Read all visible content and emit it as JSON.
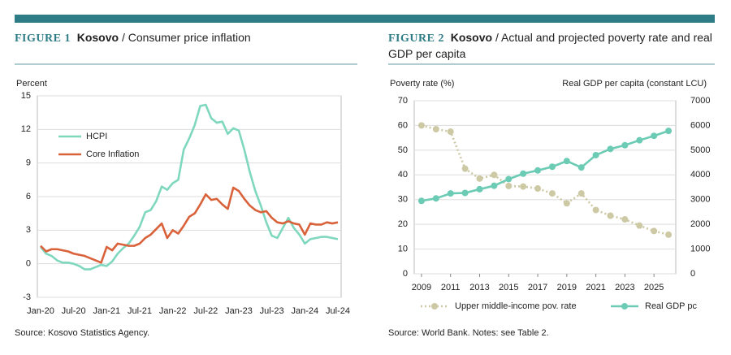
{
  "chart_data": [
    {
      "type": "line",
      "label": "FIGURE 1",
      "country": "Kosovo",
      "title": "/ Consumer price inflation",
      "ylabel": "Percent",
      "source": "Source: Kosovo Statistics Agency.",
      "categories": [
        "Jan-20",
        null,
        null,
        null,
        null,
        null,
        "Jul-20",
        null,
        null,
        null,
        null,
        null,
        "Jan-21",
        null,
        null,
        null,
        null,
        null,
        "Jul-21",
        null,
        null,
        null,
        null,
        null,
        "Jan-22",
        null,
        null,
        null,
        null,
        null,
        "Jul-22",
        null,
        null,
        null,
        null,
        null,
        "Jan-23",
        null,
        null,
        null,
        null,
        null,
        "Jul-23",
        null,
        null,
        null,
        null,
        null,
        "Jan-24",
        null,
        null,
        null,
        null,
        null,
        "Jul-24"
      ],
      "series": [
        {
          "name": "HCPI",
          "color": "#7fd8be",
          "values": [
            1.5,
            0.9,
            0.7,
            0.3,
            0.1,
            0.1,
            0.0,
            -0.2,
            -0.5,
            -0.5,
            -0.3,
            -0.1,
            -0.2,
            0.2,
            0.9,
            1.4,
            1.8,
            2.5,
            3.3,
            4.6,
            4.8,
            5.6,
            6.9,
            6.6,
            7.2,
            7.5,
            10.2,
            11.2,
            12.4,
            14.1,
            14.2,
            13.0,
            12.6,
            12.7,
            11.6,
            12.1,
            11.9,
            10.2,
            8.2,
            6.5,
            5.2,
            3.7,
            2.5,
            2.3,
            3.2,
            4.1,
            3.2,
            2.6,
            1.8,
            2.2,
            2.3,
            2.4,
            2.4,
            2.3,
            2.2
          ]
        },
        {
          "name": "Core Inflation",
          "color": "#d9623b",
          "values": [
            1.6,
            1.1,
            1.3,
            1.3,
            1.2,
            1.1,
            0.9,
            0.8,
            0.7,
            0.5,
            0.3,
            0.1,
            1.5,
            1.2,
            1.8,
            1.7,
            1.6,
            1.6,
            1.8,
            2.3,
            2.6,
            3.1,
            3.6,
            2.3,
            3.0,
            2.7,
            3.4,
            4.2,
            4.5,
            5.3,
            6.2,
            5.7,
            5.8,
            5.3,
            4.9,
            6.8,
            6.5,
            5.8,
            5.2,
            4.8,
            4.6,
            4.7,
            4.1,
            3.7,
            3.6,
            3.8,
            3.6,
            3.5,
            2.6,
            3.6,
            3.5,
            3.5,
            3.7,
            3.6,
            3.7
          ]
        }
      ],
      "ylim": [
        -3,
        15
      ],
      "yticks": [
        -3,
        0,
        3,
        6,
        9,
        12,
        15
      ],
      "grid": true,
      "legend": "upper left"
    },
    {
      "type": "line",
      "label": "FIGURE 2",
      "country": "Kosovo",
      "title": "/ Actual and projected poverty rate and real GDP per capita",
      "ylabel": "Poverty rate (%)",
      "y2label": "Real GDP per capita (constant LCU)",
      "source": "Source: World Bank. Notes: see Table 2.",
      "x": [
        2009,
        2010,
        2011,
        2012,
        2013,
        2014,
        2015,
        2016,
        2017,
        2018,
        2019,
        2020,
        2021,
        2022,
        2023,
        2024,
        2025,
        2026
      ],
      "series": [
        {
          "name": "Upper middle-income pov. rate",
          "color": "#cdc9a5",
          "dashed": true,
          "values": [
            60,
            58.5,
            57.5,
            42.5,
            38.5,
            40,
            35.5,
            35.3,
            34.5,
            32.5,
            28.5,
            32.5,
            25.8,
            23.5,
            22,
            19.5,
            17.3,
            15.8
          ]
        },
        {
          "name": "Real GDP pc",
          "color": "#6ccbb4",
          "axis": "y2",
          "values": [
            2950,
            3050,
            3250,
            3270,
            3420,
            3560,
            3830,
            4050,
            4180,
            4330,
            4560,
            4300,
            4800,
            5050,
            5200,
            5400,
            5580,
            5780
          ]
        }
      ],
      "xlim": [
        2008.5,
        2026.5
      ],
      "xticks": [
        2009,
        2011,
        2013,
        2015,
        2017,
        2019,
        2021,
        2023,
        2025
      ],
      "ylim": [
        0,
        70
      ],
      "yticks": [
        0,
        10,
        20,
        30,
        40,
        50,
        60,
        70
      ],
      "y2lim": [
        0,
        7000
      ],
      "y2ticks": [
        0,
        1000,
        2000,
        3000,
        4000,
        5000,
        6000,
        7000
      ],
      "grid": true,
      "markers": true,
      "legend": "bottom"
    }
  ]
}
